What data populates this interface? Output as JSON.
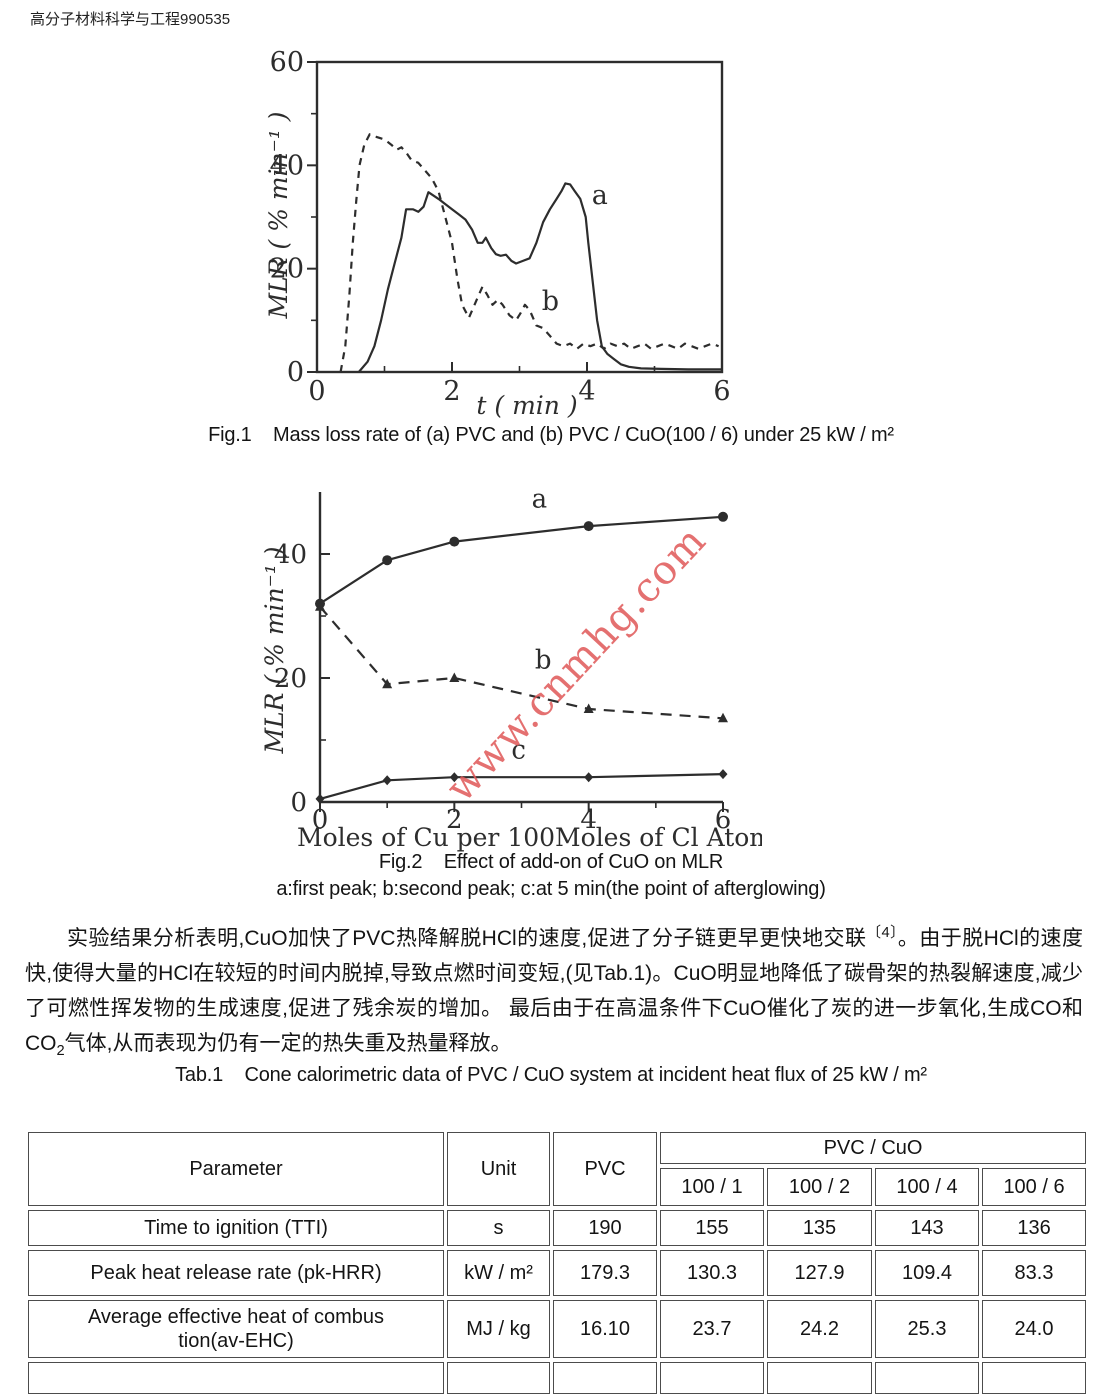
{
  "page": {
    "header": "高分子材料科学与工程990535"
  },
  "watermark": {
    "text": "www.cnmhg.com",
    "color": "#e05858"
  },
  "figures": {
    "fig1_caption": "Fig.1    Mass loss rate of (a) PVC and (b) PVC / CuO(100 / 6) under 25 kW / m²",
    "fig2_caption": "Fig.2    Effect of add-on of CuO on MLR",
    "fig2_subcaption": "a:first peak; b:second peak; c:at 5 min(the point of afterglowing)"
  },
  "paragraph": {
    "segments": [
      {
        "text": "实验结果分析表明,CuO加快了PVC热降解脱HCl的速度,促进了分子链更早更快地交联"
      },
      {
        "text": "〔4〕",
        "style": "sup"
      },
      {
        "text": "。由于脱HCl的速度快,使得大量的HCl在较短的时间内脱掉,导致点燃时间变短,(见Tab.1)。CuO明显地降低了碳骨架的热裂解速度,减少了可燃性挥发物的生成速度,促进了残余炭的增加。 最后由于在高温条件下CuO催化了炭的进一步氧化,生成CO和CO"
      },
      {
        "text": "2",
        "style": "sub"
      },
      {
        "text": "气体,从而表现为仍有一定的热失重及热量释放。"
      }
    ]
  },
  "table_caption": "Tab.1    Cone calorimetric data of PVC / CuO system at incident heat flux of 25 kW / m²",
  "table": {
    "header": {
      "parameter": "Parameter",
      "unit": "Unit",
      "pvc": "PVC",
      "pvc_cuo": "PVC / CuO",
      "ratios": [
        "100 / 1",
        "100 / 2",
        "100 / 4",
        "100 / 6"
      ]
    },
    "rows": [
      {
        "parameter": "Time to ignition (TTI)",
        "unit": "s",
        "values": [
          "190",
          "155",
          "135",
          "143",
          "136"
        ]
      },
      {
        "parameter": "Peak heat release rate (pk-HRR)",
        "unit": "kW / m²",
        "values": [
          "179.3",
          "130.3",
          "127.9",
          "109.4",
          "83.3"
        ]
      },
      {
        "parameter": "Average effective heat of combus\ntion(av-EHC)",
        "unit": "MJ / kg",
        "values": [
          "16.10",
          "23.7",
          "24.2",
          "25.3",
          "24.0"
        ]
      }
    ]
  },
  "chart_data": [
    {
      "id": "fig1",
      "type": "line",
      "title": "Mass loss rate of (a) PVC and (b) PVC / CuO(100 / 6) under 25 kW / m²",
      "xlabel": "t ( min )",
      "ylabel": "MLR ( % min⁻¹ )",
      "xlim": [
        0,
        6
      ],
      "ylim": [
        0,
        60
      ],
      "xticks": [
        0,
        2,
        4,
        6
      ],
      "xticks_minor": [
        1,
        3,
        5
      ],
      "yticks": [
        0,
        20,
        40,
        60
      ],
      "yticks_minor": [
        10,
        30,
        50
      ],
      "box": "full",
      "grid": false,
      "legend": "inline-labels",
      "series": [
        {
          "name": "a",
          "style": "solid",
          "marker": "none",
          "label_pos": [
            4.07,
            32.5
          ],
          "points": [
            [
              0.62,
              0
            ],
            [
              0.75,
              2
            ],
            [
              0.85,
              5
            ],
            [
              0.95,
              10
            ],
            [
              1.05,
              16
            ],
            [
              1.15,
              21
            ],
            [
              1.25,
              26
            ],
            [
              1.32,
              31.5
            ],
            [
              1.42,
              31.5
            ],
            [
              1.5,
              31
            ],
            [
              1.58,
              32
            ],
            [
              1.65,
              34.8
            ],
            [
              1.72,
              34.2
            ],
            [
              1.8,
              33.5
            ],
            [
              1.9,
              32.5
            ],
            [
              2.0,
              31.5
            ],
            [
              2.1,
              30.5
            ],
            [
              2.2,
              29.5
            ],
            [
              2.3,
              27.5
            ],
            [
              2.38,
              25
            ],
            [
              2.45,
              25
            ],
            [
              2.5,
              26
            ],
            [
              2.58,
              24
            ],
            [
              2.65,
              22.8
            ],
            [
              2.72,
              22.5
            ],
            [
              2.8,
              22.7
            ],
            [
              2.88,
              21.5
            ],
            [
              2.95,
              21
            ],
            [
              3.05,
              21.5
            ],
            [
              3.15,
              22
            ],
            [
              3.25,
              25
            ],
            [
              3.35,
              29
            ],
            [
              3.45,
              31.5
            ],
            [
              3.55,
              33.5
            ],
            [
              3.62,
              35
            ],
            [
              3.68,
              36.5
            ],
            [
              3.75,
              36.3
            ],
            [
              3.82,
              35
            ],
            [
              3.9,
              33.5
            ],
            [
              3.98,
              30
            ],
            [
              4.02,
              25
            ],
            [
              4.08,
              18
            ],
            [
              4.15,
              10
            ],
            [
              4.22,
              5
            ],
            [
              4.3,
              3.5
            ],
            [
              4.4,
              2.5
            ],
            [
              4.5,
              1.5
            ],
            [
              4.62,
              1
            ],
            [
              4.8,
              0.7
            ],
            [
              5.1,
              0.6
            ],
            [
              5.5,
              0.5
            ],
            [
              6.0,
              0.5
            ]
          ]
        },
        {
          "name": "b",
          "style": "dashed",
          "marker": "none",
          "label_pos": [
            3.33,
            12
          ],
          "points": [
            [
              0.35,
              0
            ],
            [
              0.42,
              5
            ],
            [
              0.48,
              15
            ],
            [
              0.53,
              25
            ],
            [
              0.58,
              33
            ],
            [
              0.63,
              40
            ],
            [
              0.7,
              44
            ],
            [
              0.78,
              46
            ],
            [
              0.88,
              45.5
            ],
            [
              1.0,
              45
            ],
            [
              1.1,
              44
            ],
            [
              1.18,
              43
            ],
            [
              1.25,
              43.5
            ],
            [
              1.32,
              42.5
            ],
            [
              1.4,
              41
            ],
            [
              1.5,
              40.5
            ],
            [
              1.6,
              39
            ],
            [
              1.7,
              37.5
            ],
            [
              1.8,
              35
            ],
            [
              1.9,
              30
            ],
            [
              2.0,
              25
            ],
            [
              2.08,
              18
            ],
            [
              2.15,
              13
            ],
            [
              2.25,
              10.5
            ],
            [
              2.35,
              13.5
            ],
            [
              2.45,
              16.5
            ],
            [
              2.52,
              15
            ],
            [
              2.6,
              13
            ],
            [
              2.68,
              14
            ],
            [
              2.75,
              13
            ],
            [
              2.85,
              11
            ],
            [
              2.95,
              10
            ],
            [
              3.02,
              11.5
            ],
            [
              3.08,
              13
            ],
            [
              3.15,
              12
            ],
            [
              3.25,
              9
            ],
            [
              3.35,
              8.5
            ],
            [
              3.45,
              7
            ],
            [
              3.55,
              5.5
            ],
            [
              3.65,
              5
            ],
            [
              3.75,
              5.5
            ],
            [
              3.85,
              4.5
            ],
            [
              3.95,
              5.5
            ],
            [
              4.05,
              5
            ],
            [
              4.15,
              5.5
            ],
            [
              4.25,
              4.5
            ],
            [
              4.35,
              5.5
            ],
            [
              4.45,
              5
            ],
            [
              4.55,
              5.5
            ],
            [
              4.65,
              4.5
            ],
            [
              4.75,
              5
            ],
            [
              4.85,
              5.5
            ],
            [
              4.95,
              4.5
            ],
            [
              5.05,
              5
            ],
            [
              5.15,
              5.5
            ],
            [
              5.25,
              5
            ],
            [
              5.35,
              4.5
            ],
            [
              5.45,
              5.5
            ],
            [
              5.55,
              5
            ],
            [
              5.65,
              4.5
            ],
            [
              5.75,
              5
            ],
            [
              5.85,
              5.5
            ],
            [
              5.95,
              5
            ]
          ]
        }
      ]
    },
    {
      "id": "fig2",
      "type": "line",
      "title": "Effect of add-on of CuO on MLR",
      "xlabel": "Moles of Cu per 100Moles of Cl Atom",
      "ylabel": "MLR ( % min⁻¹ )",
      "xlim": [
        0,
        6
      ],
      "ylim": [
        0,
        50
      ],
      "xticks": [
        0,
        2,
        4,
        6
      ],
      "xticks_minor": [
        1,
        3,
        5
      ],
      "yticks": [
        0,
        20,
        40
      ],
      "yticks_minor": [
        10,
        30
      ],
      "box": "axes",
      "grid": false,
      "legend": "inline-labels",
      "series": [
        {
          "name": "a",
          "style": "solid",
          "marker": "circle",
          "label_pos": [
            3.15,
            47.5
          ],
          "points": [
            [
              0,
              32
            ],
            [
              1,
              39
            ],
            [
              2,
              42
            ],
            [
              4,
              44.5
            ],
            [
              6,
              46
            ]
          ]
        },
        {
          "name": "b",
          "style": "dashed",
          "marker": "triangle",
          "label_pos": [
            3.2,
            21.5
          ],
          "points": [
            [
              0,
              31.5
            ],
            [
              1,
              19
            ],
            [
              2,
              20
            ],
            [
              4,
              15
            ],
            [
              6,
              13.5
            ]
          ]
        },
        {
          "name": "c",
          "style": "solid",
          "marker": "diamond",
          "label_pos": [
            2.85,
            7
          ],
          "points": [
            [
              0,
              0.5
            ],
            [
              1,
              3.5
            ],
            [
              2,
              4
            ],
            [
              4,
              4
            ],
            [
              6,
              4.5
            ]
          ]
        }
      ]
    }
  ]
}
